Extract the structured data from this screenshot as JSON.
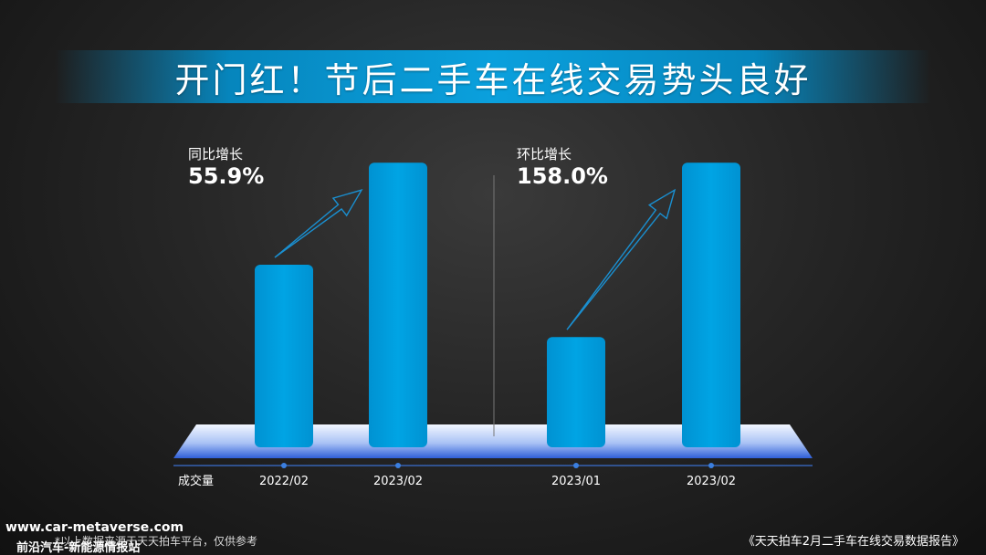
{
  "title": "开门红！节后二手车在线交易势头良好",
  "stats": {
    "left": {
      "label": "同比增长",
      "value": "55.9%"
    },
    "right": {
      "label": "环比增长",
      "value": "158.0%"
    }
  },
  "chart_data": {
    "type": "bar",
    "row_label": "成交量",
    "groups": [
      {
        "categories": [
          "2022/02",
          "2023/02"
        ],
        "values": [
          100,
          155.9
        ]
      },
      {
        "categories": [
          "2023/01",
          "2023/02"
        ],
        "values": [
          60.4,
          155.9
        ]
      }
    ],
    "ylim": [
      0,
      160
    ],
    "grid": false,
    "colors": {
      "bar": "#00a0e0",
      "arrow": "#1a8fd0",
      "platform_top": "#eef4ff",
      "platform_bottom": "#2f5fd8"
    }
  },
  "footer": {
    "website": "www.car-metaverse.com",
    "brand": "前沿汽车-新能源情报站",
    "source_note": "*以上数据来源于天天拍车平台，仅供参考",
    "report": "《天天拍车2月二手车在线交易数据报告》"
  }
}
